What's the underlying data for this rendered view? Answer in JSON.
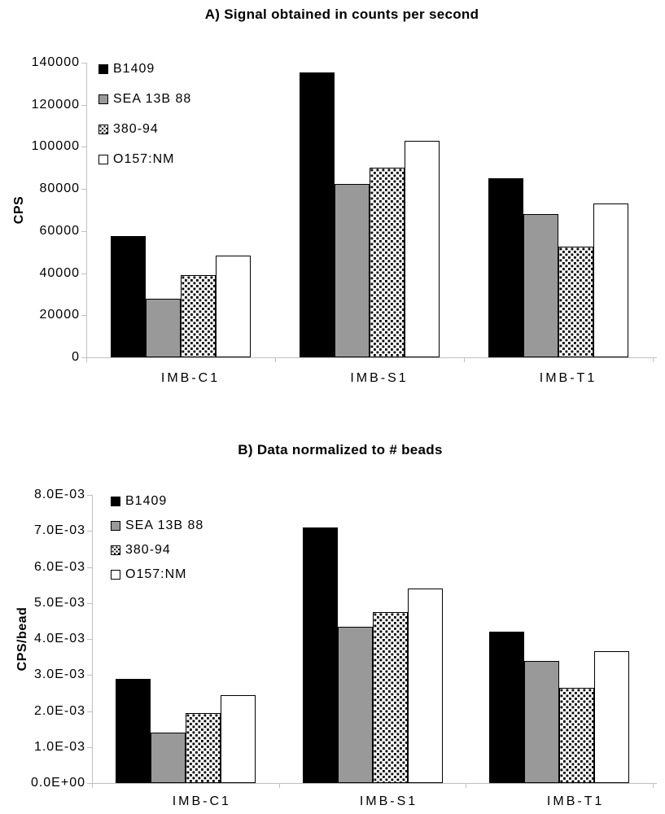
{
  "figure": {
    "background": "#ffffff",
    "colors": {
      "bar_black": "#000000",
      "bar_gray": "#999999",
      "bar_white": "#ffffff",
      "bar_outline": "#000000",
      "axis_line": "#c0c0c0",
      "text": "#000000"
    }
  },
  "chart_data": [
    {
      "type": "bar",
      "panel": "A",
      "title": "A) Signal obtained in counts per second",
      "ylabel": "CPS",
      "xlabel": "",
      "categories": [
        "IMB-C1",
        "IMB-S1",
        "IMB-T1"
      ],
      "series": [
        {
          "name": "B1409",
          "fill": "black",
          "values": [
            57500,
            135500,
            85000
          ]
        },
        {
          "name": "SEA 13B 88",
          "fill": "gray",
          "values": [
            28000,
            82500,
            68000
          ]
        },
        {
          "name": "380-94",
          "fill": "dots",
          "values": [
            39000,
            90000,
            52500
          ]
        },
        {
          "name": "O157:NM",
          "fill": "white",
          "values": [
            48500,
            103000,
            73000
          ]
        }
      ],
      "ylim": [
        0,
        140000
      ],
      "ytick_step": 20000,
      "ytick_labels": [
        "0",
        "20000",
        "40000",
        "60000",
        "80000",
        "100000",
        "120000",
        "140000"
      ],
      "legend_position": "inside-top-left",
      "grid": false
    },
    {
      "type": "bar",
      "panel": "B",
      "title": "B) Data normalized to # beads",
      "ylabel": "CPS/bead",
      "xlabel": "",
      "categories": [
        "IMB-C1",
        "IMB-S1",
        "IMB-T1"
      ],
      "series": [
        {
          "name": "B1409",
          "fill": "black",
          "values": [
            0.0029,
            0.0071,
            0.0042
          ]
        },
        {
          "name": "SEA 13B 88",
          "fill": "gray",
          "values": [
            0.0014,
            0.00435,
            0.0034
          ]
        },
        {
          "name": "380-94",
          "fill": "dots",
          "values": [
            0.00195,
            0.00475,
            0.00265
          ]
        },
        {
          "name": "O157:NM",
          "fill": "white",
          "values": [
            0.00245,
            0.0054,
            0.00365
          ]
        }
      ],
      "ylim": [
        0,
        0.008
      ],
      "ytick_step": 0.001,
      "ytick_labels": [
        "0.0E+00",
        "1.0E-03",
        "2.0E-03",
        "3.0E-03",
        "4.0E-03",
        "5.0E-03",
        "6.0E-03",
        "7.0E-03",
        "8.0E-03"
      ],
      "legend_position": "inside-top-left",
      "grid": false
    }
  ]
}
